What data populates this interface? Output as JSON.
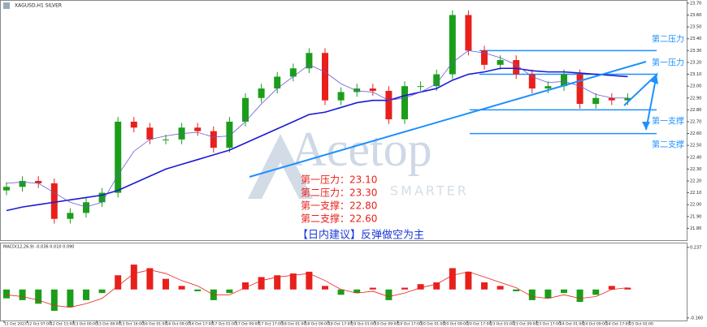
{
  "chart_data": {
    "type": "candlestick",
    "title": "XAGUSD,H1  SILVER",
    "watermark": "Acetop",
    "watermark_sub": "SMARTER",
    "open": [
      22.12,
      22.15,
      22.2,
      22.18,
      21.88,
      21.93,
      22.02,
      22.1,
      22.7,
      22.65,
      22.55,
      22.55,
      22.65,
      22.62,
      22.48,
      22.7,
      22.9,
      22.98,
      23.08,
      23.15,
      23.28,
      22.88,
      22.95,
      22.98,
      22.96,
      22.72,
      23.0,
      23.0,
      23.1,
      23.6,
      23.3,
      23.18,
      23.22,
      23.1,
      22.98,
      23.0,
      23.1,
      22.85,
      22.9,
      22.88
    ],
    "high": [
      22.19,
      22.24,
      22.24,
      22.22,
      21.97,
      22.06,
      22.14,
      22.74,
      22.74,
      22.69,
      22.59,
      22.69,
      22.69,
      22.66,
      22.74,
      22.94,
      23.02,
      23.12,
      23.19,
      23.32,
      23.32,
      22.99,
      23.02,
      23.02,
      23.0,
      23.04,
      23.04,
      23.14,
      23.64,
      23.64,
      23.34,
      23.26,
      23.26,
      23.14,
      23.04,
      23.14,
      23.14,
      22.94,
      22.94,
      22.94
    ],
    "low": [
      22.08,
      22.11,
      22.14,
      21.84,
      21.84,
      21.89,
      21.98,
      22.06,
      22.61,
      22.51,
      22.51,
      22.51,
      22.58,
      22.44,
      22.44,
      22.66,
      22.86,
      22.94,
      23.04,
      23.11,
      22.84,
      22.84,
      22.91,
      22.92,
      22.68,
      22.68,
      22.96,
      22.96,
      23.06,
      23.26,
      23.14,
      23.14,
      23.06,
      22.94,
      22.94,
      22.96,
      22.81,
      22.81,
      22.84,
      22.84
    ],
    "close": [
      22.15,
      22.2,
      22.18,
      21.88,
      21.93,
      22.02,
      22.1,
      22.7,
      22.65,
      22.55,
      22.55,
      22.65,
      22.62,
      22.48,
      22.7,
      22.9,
      22.98,
      23.08,
      23.15,
      23.28,
      22.88,
      22.95,
      22.98,
      22.96,
      22.72,
      23.0,
      23.0,
      23.1,
      23.6,
      23.3,
      23.18,
      23.22,
      23.1,
      22.98,
      23.0,
      23.1,
      22.85,
      22.9,
      22.88,
      22.9
    ],
    "ma_slow": [
      21.95,
      21.98,
      22.0,
      22.02,
      22.04,
      22.06,
      22.08,
      22.12,
      22.18,
      22.24,
      22.3,
      22.34,
      22.38,
      22.42,
      22.46,
      22.52,
      22.58,
      22.64,
      22.7,
      22.76,
      22.78,
      22.82,
      22.86,
      22.88,
      22.88,
      22.92,
      22.95,
      22.98,
      23.05,
      23.1,
      23.12,
      23.15,
      23.15,
      23.13,
      23.12,
      23.12,
      23.11,
      23.1,
      23.09,
      23.08
    ],
    "ma_fast": [
      22.18,
      22.19,
      22.18,
      22.1,
      22.02,
      21.98,
      22.02,
      22.25,
      22.45,
      22.55,
      22.58,
      22.6,
      22.61,
      22.57,
      22.58,
      22.7,
      22.85,
      22.98,
      23.08,
      23.18,
      23.12,
      23.02,
      22.96,
      22.95,
      22.88,
      22.9,
      22.95,
      23.02,
      23.2,
      23.3,
      23.28,
      23.24,
      23.18,
      23.08,
      23.03,
      23.04,
      23.0,
      22.93,
      22.9,
      22.9
    ],
    "up_color": "#1a9e1a",
    "down_color": "#e8201c",
    "ma_slow_color": "#1a1ad6",
    "ma_fast_color": "#6a5acd",
    "ylim": [
      21.7,
      23.72
    ],
    "yticks": [
      {
        "value": 21.8,
        "label": "21.80"
      },
      {
        "value": 21.9,
        "label": "21.90"
      },
      {
        "value": 22.0,
        "label": "22.00"
      },
      {
        "value": 22.1,
        "label": "22.10"
      },
      {
        "value": 22.2,
        "label": "22.20"
      },
      {
        "value": 22.3,
        "label": "22.30"
      },
      {
        "value": 22.4,
        "label": "22.40"
      },
      {
        "value": 22.5,
        "label": "22.50"
      },
      {
        "value": 22.6,
        "label": "22.60"
      },
      {
        "value": 22.7,
        "label": "22.70"
      },
      {
        "value": 22.8,
        "label": "22.80"
      },
      {
        "value": 22.9,
        "label": "22.90"
      },
      {
        "value": 23.0,
        "label": "23.00"
      },
      {
        "value": 23.1,
        "label": "23.10"
      },
      {
        "value": 23.2,
        "label": "23.20"
      },
      {
        "value": 23.3,
        "label": "23.30"
      },
      {
        "value": 23.4,
        "label": "23.40"
      },
      {
        "value": 23.5,
        "label": "23.50"
      },
      {
        "value": 23.6,
        "label": "23.60"
      },
      {
        "value": 23.7,
        "label": "23.70"
      }
    ],
    "levels": [
      {
        "name": "第二压力",
        "value": 23.3
      },
      {
        "name": "第一压力",
        "value": 23.1
      },
      {
        "name": "第一支撑",
        "value": 22.8
      },
      {
        "name": "第二支撑",
        "value": 22.6
      }
    ],
    "level_color": "#1e90ff",
    "notes": [
      "第一压力：23.10",
      "第二压力：23.30",
      "第一支撑：22.80",
      "第二支撑：22.60"
    ],
    "advice": "【日内建议】反弹做空为主",
    "macd_label": "MACD(12,26,9) -0.036 0.010 0.090",
    "macd_hist": [
      -0.05,
      -0.06,
      -0.08,
      -0.12,
      -0.1,
      -0.06,
      -0.02,
      0.08,
      0.14,
      0.12,
      0.06,
      0.02,
      -0.01,
      -0.06,
      -0.02,
      0.04,
      0.07,
      0.08,
      0.09,
      0.1,
      0.02,
      -0.03,
      -0.02,
      0.01,
      -0.06,
      0.01,
      0.03,
      0.04,
      0.12,
      0.1,
      0.04,
      0.02,
      -0.01,
      -0.06,
      -0.05,
      -0.02,
      -0.07,
      -0.03,
      0.02,
      0.01
    ],
    "macd_signal": [
      -0.03,
      -0.04,
      -0.06,
      -0.09,
      -0.1,
      -0.08,
      -0.05,
      0.02,
      0.09,
      0.11,
      0.09,
      0.05,
      0.02,
      -0.03,
      -0.03,
      0.01,
      0.05,
      0.07,
      0.08,
      0.09,
      0.05,
      0.0,
      -0.02,
      -0.01,
      -0.04,
      -0.02,
      0.01,
      0.03,
      0.08,
      0.1,
      0.07,
      0.04,
      0.01,
      -0.04,
      -0.05,
      -0.03,
      -0.05,
      -0.04,
      0.0,
      0.01
    ],
    "y2lim": [
      -0.17,
      0.25
    ],
    "y2ticks": [
      0.237,
      {
        "value": -0.16,
        "label": "-0.160"
      }
    ],
    "x_labels": [
      "11 Oct 2023",
      "12 Oct 07:00",
      "12 Oct 15:00",
      "13 Oct 00:00",
      "13 Oct 08:00",
      "13 Oct 16:00",
      "16 Oct 01:00",
      "16 Oct 09:00",
      "16 Oct 17:00",
      "17 Oct 01:00",
      "17 Oct 09:00",
      "17 Oct 17:00",
      "18 Oct 01:00",
      "18 Oct 09:00",
      "18 Oct 17:00",
      "19 Oct 01:00",
      "19 Oct 09:00",
      "19 Oct 17:00",
      "20 Oct 01:00",
      "20 Oct 09:00",
      "20 Oct 17:00",
      "23 Oct 01:00",
      "23 Oct 09:00",
      "23 Oct 17:00",
      "24 Oct 01:00",
      "24 Oct 09:00",
      "24 Oct 17:00",
      "25 Oct 02:00"
    ]
  }
}
